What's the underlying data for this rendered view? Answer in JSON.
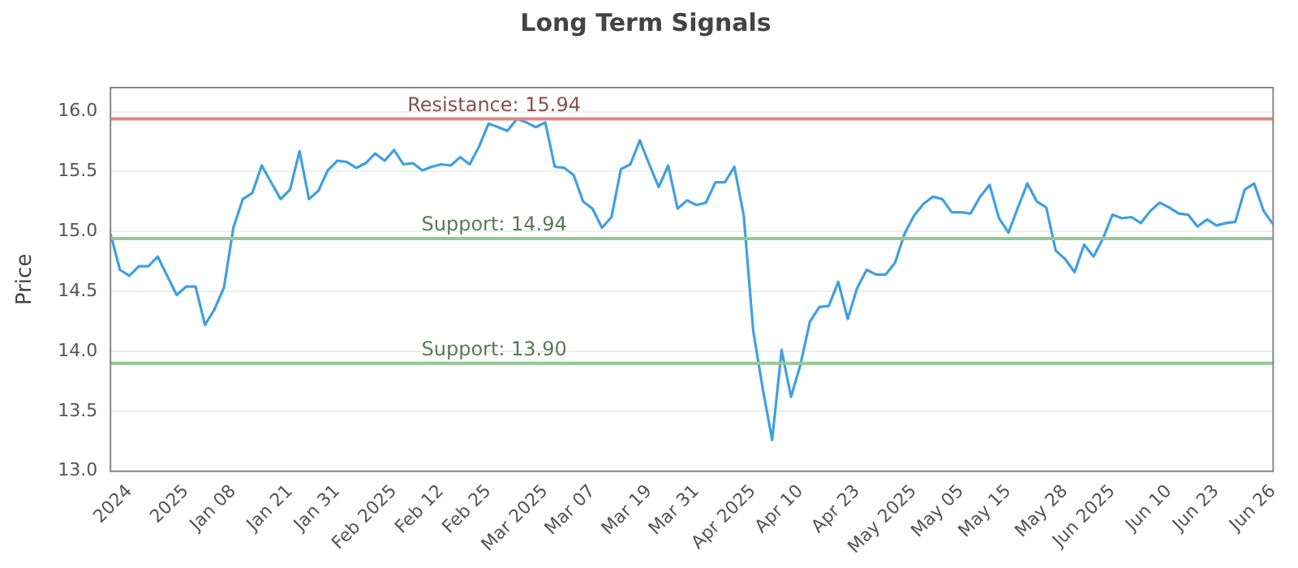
{
  "chart_data": {
    "type": "line",
    "title": "Long Term Signals",
    "ylabel": "Price",
    "categories": [
      null,
      null,
      "2024",
      null,
      null,
      null,
      null,
      null,
      "2025",
      null,
      null,
      null,
      null,
      "Jan 08",
      null,
      null,
      null,
      null,
      null,
      "Jan 21",
      null,
      null,
      null,
      null,
      "Jan 31",
      null,
      null,
      null,
      null,
      null,
      "Feb 2025",
      null,
      null,
      null,
      null,
      "Feb 12",
      null,
      null,
      null,
      null,
      "Feb 25",
      null,
      null,
      null,
      null,
      null,
      "Mar 2025",
      null,
      null,
      null,
      null,
      "Mar 07",
      null,
      null,
      null,
      null,
      null,
      "Mar 19",
      null,
      null,
      null,
      null,
      "Mar 31",
      null,
      null,
      null,
      null,
      null,
      "Apr 2025",
      null,
      null,
      null,
      null,
      "Apr 10",
      null,
      null,
      null,
      null,
      null,
      "Apr 23",
      null,
      null,
      null,
      null,
      null,
      "May 2025",
      null,
      null,
      null,
      null,
      "May 05",
      null,
      null,
      null,
      null,
      "May 15",
      null,
      null,
      null,
      null,
      null,
      "May 28",
      null,
      null,
      null,
      null,
      "Jun 2025",
      null,
      null,
      null,
      null,
      null,
      "Jun 10",
      null,
      null,
      null,
      null,
      "Jun 23",
      null,
      null,
      null,
      null,
      null,
      "Jun 26"
    ],
    "series": [
      {
        "color": "#3ea0e4",
        "values": [
          14.98,
          14.68,
          14.63,
          14.71,
          14.71,
          14.79,
          14.63,
          14.47,
          14.54,
          14.54,
          14.22,
          14.35,
          14.53,
          15.03,
          15.27,
          15.32,
          15.55,
          15.41,
          15.27,
          15.35,
          15.67,
          15.27,
          15.34,
          15.51,
          15.59,
          15.58,
          15.53,
          15.57,
          15.65,
          15.59,
          15.68,
          15.56,
          15.57,
          15.51,
          15.54,
          15.56,
          15.55,
          15.62,
          15.56,
          15.71,
          15.9,
          15.87,
          15.84,
          15.94,
          15.91,
          15.87,
          15.91,
          15.54,
          15.53,
          15.47,
          15.25,
          15.19,
          15.03,
          15.12,
          15.52,
          15.56,
          15.76,
          15.56,
          15.37,
          15.55,
          15.19,
          15.26,
          15.22,
          15.24,
          15.41,
          15.41,
          15.54,
          15.13,
          14.17,
          13.69,
          13.26,
          14.01,
          13.62,
          13.89,
          14.25,
          14.37,
          14.38,
          14.58,
          14.27,
          14.53,
          14.68,
          14.64,
          14.64,
          14.74,
          14.98,
          15.13,
          15.23,
          15.29,
          15.27,
          15.16,
          15.16,
          15.15,
          15.29,
          15.39,
          15.11,
          14.99,
          15.2,
          15.4,
          15.25,
          15.2,
          14.84,
          14.77,
          14.66,
          14.89,
          14.79,
          14.94,
          15.14,
          15.11,
          15.12,
          15.07,
          15.17,
          15.24,
          15.2,
          15.15,
          15.14,
          15.04,
          15.1,
          15.05,
          15.07,
          15.08,
          15.35,
          15.4,
          15.17,
          15.06
        ]
      }
    ],
    "ylim": [
      13,
      16.2
    ],
    "yticks": [
      {
        "value": 13,
        "label": "13.0"
      },
      {
        "value": 13.5,
        "label": "13.5"
      },
      {
        "value": 14,
        "label": "14.0"
      },
      {
        "value": 14.5,
        "label": "14.5"
      },
      {
        "value": 15,
        "label": "15.0"
      },
      {
        "value": 15.5,
        "label": "15.5"
      },
      {
        "value": 16,
        "label": "16.0"
      }
    ],
    "ref_lines": [
      {
        "axis": "y",
        "value": 15.94,
        "label": "Resistance: 15.94",
        "color": "#e08585"
      },
      {
        "axis": "y",
        "value": 14.94,
        "label": "Support: 14.94",
        "color": "#93c993"
      },
      {
        "axis": "y",
        "value": 13.9,
        "label": "Support: 13.90",
        "color": "#93c993"
      }
    ],
    "grid": "y",
    "legend": false,
    "marker": "none",
    "line_style": "solid"
  }
}
